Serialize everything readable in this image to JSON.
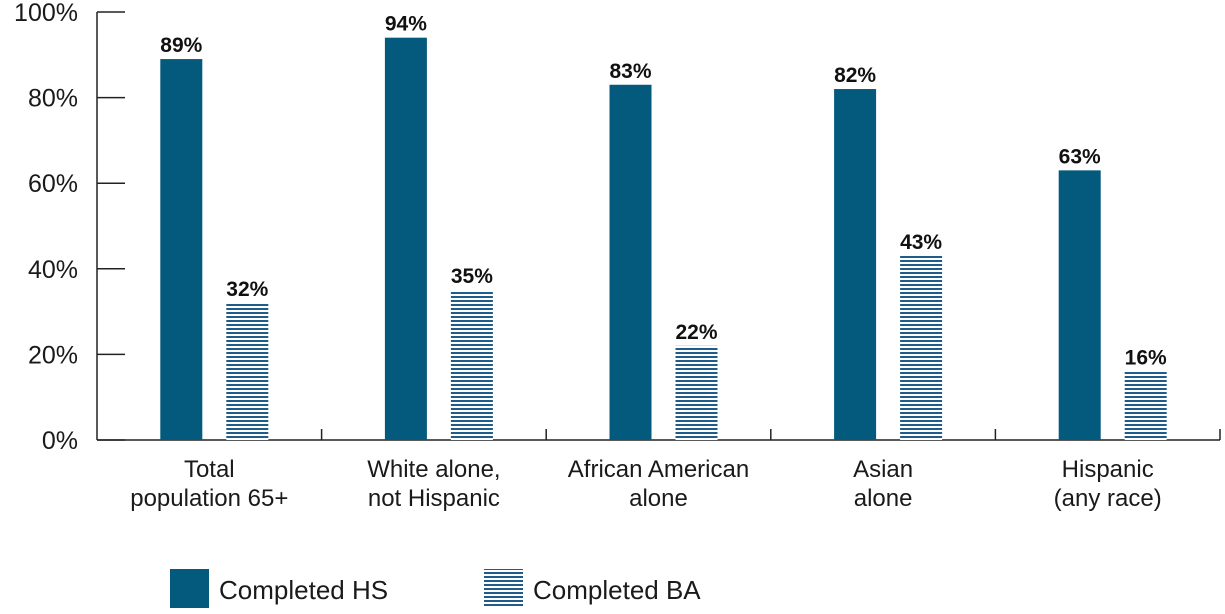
{
  "chart_data": {
    "type": "bar",
    "title": "",
    "xlabel": "",
    "ylabel": "",
    "ylim": [
      0,
      100
    ],
    "y_ticks": [
      "0%",
      "20%",
      "40%",
      "60%",
      "80%",
      "100%"
    ],
    "y_tick_values": [
      0,
      20,
      40,
      60,
      80,
      100
    ],
    "categories": [
      [
        "Total",
        "population 65+"
      ],
      [
        "White alone,",
        "not Hispanic"
      ],
      [
        "African American",
        "alone"
      ],
      [
        "Asian",
        "alone"
      ],
      [
        "Hispanic",
        "(any race)"
      ]
    ],
    "series": [
      {
        "name": "Completed HS",
        "values": [
          89,
          94,
          83,
          82,
          63
        ],
        "labels": [
          "89%",
          "94%",
          "83%",
          "82%",
          "63%"
        ],
        "color": "#045a7d",
        "pattern": "solid"
      },
      {
        "name": "Completed BA",
        "values": [
          32,
          35,
          22,
          43,
          16
        ],
        "labels": [
          "32%",
          "35%",
          "22%",
          "43%",
          "16%"
        ],
        "color": "#1f5c8a",
        "pattern": "horizontal-stripes"
      }
    ],
    "legend_position": "bottom-left",
    "grid": false
  }
}
